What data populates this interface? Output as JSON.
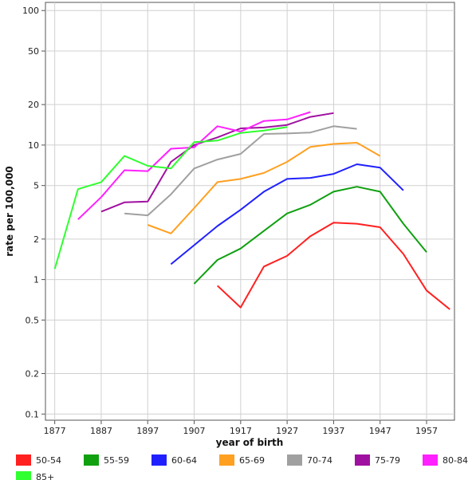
{
  "chart_data": {
    "type": "line",
    "xlabel": "year of birth",
    "ylabel": "rate per 100,000",
    "y_scale": "log",
    "ylim": [
      0.09,
      115
    ],
    "xlim": [
      1875,
      1963
    ],
    "x_ticks": [
      1877,
      1887,
      1897,
      1907,
      1917,
      1927,
      1937,
      1947,
      1957
    ],
    "y_ticks": [
      0.1,
      0.2,
      0.5,
      1,
      2,
      5,
      10,
      20,
      50,
      100
    ],
    "y_tick_labels": [
      "0.1",
      "0.2",
      "0.5",
      "1",
      "2",
      "5",
      "10",
      "20",
      "50",
      "100"
    ],
    "grid": true,
    "legend_position": "bottom",
    "series": [
      {
        "name": "50-54",
        "color": "#ff2020",
        "x": [
          1912,
          1917,
          1922,
          1927,
          1932,
          1937,
          1942,
          1947,
          1952,
          1957,
          1962
        ],
        "y": [
          0.9,
          0.62,
          1.25,
          1.5,
          2.1,
          2.65,
          2.6,
          2.45,
          1.55,
          0.83,
          0.6
        ]
      },
      {
        "name": "55-59",
        "color": "#10a010",
        "x": [
          1907,
          1912,
          1917,
          1922,
          1927,
          1932,
          1937,
          1942,
          1947,
          1952,
          1957
        ],
        "y": [
          0.93,
          1.4,
          1.7,
          2.3,
          3.1,
          3.6,
          4.5,
          4.9,
          4.5,
          2.6,
          1.6
        ]
      },
      {
        "name": "60-64",
        "color": "#2020ff",
        "x": [
          1902,
          1907,
          1912,
          1917,
          1922,
          1927,
          1932,
          1937,
          1942,
          1947,
          1952
        ],
        "y": [
          1.3,
          1.8,
          2.5,
          3.3,
          4.5,
          5.6,
          5.7,
          6.1,
          7.2,
          6.8,
          4.6
        ]
      },
      {
        "name": "65-69",
        "color": "#ffa020",
        "x": [
          1897,
          1902,
          1907,
          1912,
          1917,
          1922,
          1927,
          1932,
          1937,
          1942,
          1947
        ],
        "y": [
          2.55,
          2.2,
          3.4,
          5.3,
          5.6,
          6.2,
          7.5,
          9.7,
          10.2,
          10.4,
          8.3
        ]
      },
      {
        "name": "70-74",
        "color": "#a0a0a0",
        "x": [
          1892,
          1897,
          1902,
          1907,
          1912,
          1917,
          1922,
          1927,
          1932,
          1937,
          1942
        ],
        "y": [
          3.1,
          3.0,
          4.3,
          6.7,
          7.8,
          8.6,
          12.1,
          12.2,
          12.4,
          13.8,
          13.2
        ]
      },
      {
        "name": "75-79",
        "color": "#a010a0",
        "x": [
          1887,
          1892,
          1897,
          1902,
          1907,
          1912,
          1917,
          1922,
          1927,
          1932,
          1937
        ],
        "y": [
          3.2,
          3.75,
          3.8,
          7.5,
          10.0,
          11.4,
          13.3,
          13.5,
          14.1,
          16.2,
          17.3
        ]
      },
      {
        "name": "80-84",
        "color": "#ff20ff",
        "x": [
          1882,
          1887,
          1892,
          1897,
          1902,
          1907,
          1912,
          1917,
          1922,
          1927,
          1932
        ],
        "y": [
          2.8,
          4.1,
          6.5,
          6.4,
          9.4,
          9.6,
          13.8,
          12.6,
          15.1,
          15.5,
          17.6
        ]
      },
      {
        "name": "85+",
        "color": "#30ff30",
        "x": [
          1877,
          1882,
          1887,
          1892,
          1897,
          1902,
          1907,
          1912,
          1917,
          1922,
          1927
        ],
        "y": [
          1.2,
          4.7,
          5.3,
          8.3,
          7.0,
          6.7,
          10.5,
          10.8,
          12.3,
          12.8,
          13.6
        ]
      }
    ]
  }
}
